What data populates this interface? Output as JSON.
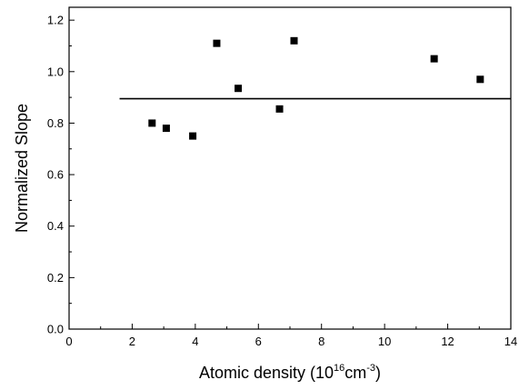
{
  "chart_data": {
    "type": "scatter",
    "title": "",
    "xlabel": {
      "prefix": "Atomic density (10",
      "sup1": "16",
      "middle": "cm",
      "sup2": "-3",
      "suffix": ")"
    },
    "ylabel": "Normalized Slope",
    "xlim": [
      0,
      14
    ],
    "ylim": [
      0.0,
      1.25
    ],
    "xticks": [
      0,
      2,
      4,
      6,
      8,
      10,
      12,
      14
    ],
    "xtick_labels": [
      "0",
      "2",
      "4",
      "6",
      "8",
      "10",
      "12",
      "14"
    ],
    "yticks": [
      0.0,
      0.2,
      0.4,
      0.6,
      0.8,
      1.0,
      1.2
    ],
    "ytick_labels": [
      "0.0",
      "0.2",
      "0.4",
      "0.6",
      "0.8",
      "1.0",
      "1.2"
    ],
    "grid": false,
    "legend": "none",
    "series": [
      {
        "kind": "points",
        "marker": "square",
        "color": "#000000",
        "x": [
          2.63,
          3.08,
          3.92,
          4.68,
          5.36,
          6.67,
          7.13,
          11.57,
          13.03
        ],
        "y": [
          0.8,
          0.78,
          0.75,
          1.11,
          0.935,
          0.855,
          1.12,
          1.05,
          0.97
        ]
      },
      {
        "kind": "line",
        "color": "#000000",
        "x": [
          1.6,
          14
        ],
        "y": [
          0.895,
          0.895
        ]
      }
    ]
  }
}
